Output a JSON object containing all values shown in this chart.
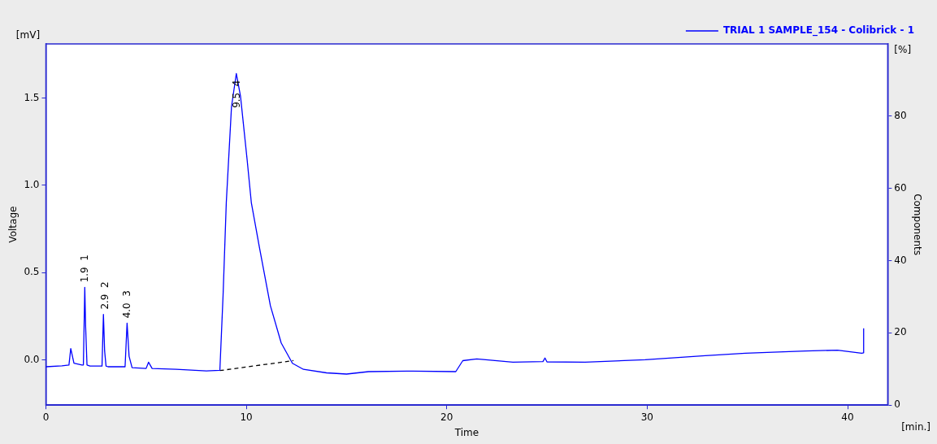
{
  "chart_data": {
    "type": "line",
    "xlabel": "Time",
    "ylabel": "Voltage",
    "y2label": "Components",
    "xlim": [
      0,
      42
    ],
    "xticks": [
      0,
      10,
      20,
      30,
      40
    ],
    "ylim": [
      -0.26,
      1.81
    ],
    "yticks": [
      {
        "value": 0,
        "label": "0.0"
      },
      {
        "value": 0.5,
        "label": "0.5"
      },
      {
        "value": 1,
        "label": "1.0"
      },
      {
        "value": 1.5,
        "label": "1.5"
      }
    ],
    "y2lim": [
      0,
      100
    ],
    "y2ticks": [
      0,
      20,
      40,
      60,
      80
    ],
    "grid": false,
    "legend": "top right",
    "marker": "none",
    "series": [
      {
        "name": "TRIAL 1 SAMPLE_154 - Colibrick - 1",
        "color": "#0000ff",
        "line_style": "solid",
        "x": [
          0,
          0.8,
          1.15,
          1.24,
          1.4,
          1.8,
          1.87,
          1.94,
          1.98,
          2.05,
          2.2,
          2.8,
          2.87,
          2.93,
          3.0,
          3.1,
          3.3,
          3.95,
          4.05,
          4.15,
          4.3,
          5.0,
          5.12,
          5.3,
          6.5,
          8.0,
          8.68,
          8.84,
          9.0,
          9.26,
          9.5,
          9.71,
          10.04,
          10.25,
          10.66,
          11.2,
          11.74,
          12.3,
          12.85,
          14.0,
          15.0,
          16.1,
          18.0,
          20.45,
          20.8,
          21.5,
          23.3,
          24.8,
          24.9,
          25.0,
          26.9,
          29.9,
          32.9,
          34.9,
          37.9,
          39.5,
          40.7,
          40.8,
          40.8
        ],
        "values": [
          -0.04,
          -0.035,
          -0.03,
          0.064,
          -0.02,
          -0.03,
          -0.03,
          0.415,
          0.196,
          -0.03,
          -0.036,
          -0.036,
          0.26,
          0.05,
          -0.036,
          -0.04,
          -0.04,
          -0.04,
          0.21,
          0.02,
          -0.045,
          -0.05,
          -0.014,
          -0.05,
          -0.055,
          -0.064,
          -0.06,
          0.37,
          0.9,
          1.45,
          1.64,
          1.51,
          1.146,
          0.9,
          0.64,
          0.31,
          0.096,
          -0.02,
          -0.055,
          -0.075,
          -0.082,
          -0.068,
          -0.065,
          -0.068,
          -0.005,
          0.005,
          -0.014,
          -0.01,
          0.01,
          -0.012,
          -0.014,
          0.0,
          0.023,
          0.037,
          0.05,
          0.055,
          0.037,
          0.04,
          0.18
        ]
      },
      {
        "color": "#000000",
        "line_style": "dashed",
        "x": [
          8.68,
          12.35
        ],
        "values": [
          -0.062,
          -0.005
        ]
      }
    ],
    "annotations": [
      "[mV]",
      "[%]",
      "[min.]",
      {
        "text": "1.9  1",
        "x": 1.94,
        "y": 0.415
      },
      {
        "text": "2.9  2",
        "x": 2.93,
        "y": 0.26
      },
      {
        "text": "4.0  3",
        "x": 4.05,
        "y": 0.21
      },
      {
        "text": "9.5  4",
        "x": 9.5,
        "y": 1.64
      }
    ]
  }
}
